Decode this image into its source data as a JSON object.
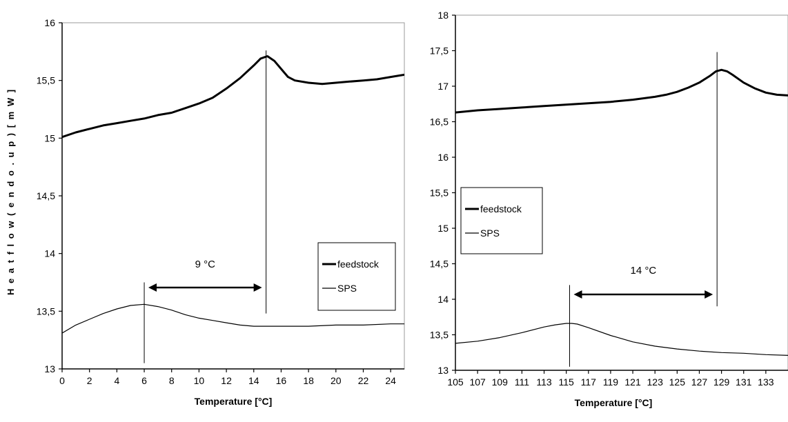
{
  "chart_data": [
    {
      "type": "line",
      "xlabel": "Temperature [°C]",
      "ylabel": "H e a t  f l o w  ( e n d o .  u p )  [ m W ]",
      "xlim": [
        0,
        25
      ],
      "ylim": [
        13,
        16
      ],
      "xticks": [
        "0",
        "2",
        "4",
        "6",
        "8",
        "10",
        "12",
        "14",
        "16",
        "18",
        "20",
        "22",
        "24"
      ],
      "yticks": [
        "13",
        "13,5",
        "14",
        "14,5",
        "15",
        "15,5",
        "16"
      ],
      "legend": {
        "placement": "bottom-right",
        "entries": [
          "feedstock",
          "SPS"
        ]
      },
      "annotation": {
        "text": "9 °C",
        "from": 6,
        "to": 14.9
      },
      "series": [
        {
          "name": "feedstock",
          "x": [
            0,
            1,
            2,
            3,
            4,
            5,
            6,
            7,
            8,
            9,
            10,
            11,
            12,
            13,
            14,
            14.5,
            15,
            15.5,
            16,
            16.5,
            17,
            18,
            19,
            20,
            21,
            22,
            23,
            24,
            25
          ],
          "y": [
            15.01,
            15.05,
            15.08,
            15.11,
            15.13,
            15.15,
            15.17,
            15.2,
            15.22,
            15.26,
            15.3,
            15.35,
            15.43,
            15.52,
            15.63,
            15.69,
            15.71,
            15.67,
            15.6,
            15.53,
            15.5,
            15.48,
            15.47,
            15.48,
            15.49,
            15.5,
            15.51,
            15.53,
            15.55
          ]
        },
        {
          "name": "SPS",
          "x": [
            0,
            1,
            2,
            3,
            4,
            5,
            6,
            7,
            8,
            9,
            10,
            11,
            12,
            13,
            14,
            15,
            16,
            18,
            20,
            22,
            24,
            25
          ],
          "y": [
            13.31,
            13.38,
            13.43,
            13.48,
            13.52,
            13.55,
            13.56,
            13.54,
            13.51,
            13.47,
            13.44,
            13.42,
            13.4,
            13.38,
            13.37,
            13.37,
            13.37,
            13.37,
            13.38,
            13.38,
            13.39,
            13.39
          ]
        }
      ]
    },
    {
      "type": "line",
      "xlabel": "Temperature [°C]",
      "xlim": [
        105,
        135
      ],
      "ylim": [
        13,
        18
      ],
      "xticks": [
        "105",
        "107",
        "109",
        "111",
        "113",
        "115",
        "117",
        "119",
        "121",
        "123",
        "125",
        "127",
        "129",
        "131",
        "133"
      ],
      "yticks": [
        "13",
        "13,5",
        "14",
        "14,5",
        "15",
        "15,5",
        "16",
        "16,5",
        "17",
        "17,5",
        "18"
      ],
      "legend": {
        "placement": "middle-left",
        "entries": [
          "feedstock",
          "SPS"
        ]
      },
      "annotation": {
        "text": "14 °C",
        "from": 115.3,
        "to": 128.6
      },
      "series": [
        {
          "name": "feedstock",
          "x": [
            105,
            107,
            109,
            111,
            113,
            115,
            117,
            119,
            121,
            123,
            124,
            125,
            126,
            127,
            128,
            128.5,
            129,
            129.5,
            130,
            131,
            132,
            133,
            134,
            135
          ],
          "y": [
            16.63,
            16.66,
            16.68,
            16.7,
            16.72,
            16.74,
            16.76,
            16.78,
            16.81,
            16.85,
            16.88,
            16.92,
            16.98,
            17.05,
            17.15,
            17.21,
            17.23,
            17.21,
            17.16,
            17.05,
            16.97,
            16.91,
            16.88,
            16.87
          ]
        },
        {
          "name": "SPS",
          "x": [
            105,
            107,
            109,
            111,
            113,
            114,
            115,
            115.5,
            116,
            117,
            119,
            121,
            123,
            125,
            127,
            129,
            131,
            133,
            135
          ],
          "y": [
            13.38,
            13.41,
            13.46,
            13.53,
            13.61,
            13.64,
            13.66,
            13.66,
            13.65,
            13.6,
            13.49,
            13.4,
            13.34,
            13.3,
            13.27,
            13.25,
            13.24,
            13.22,
            13.21
          ]
        }
      ]
    }
  ]
}
